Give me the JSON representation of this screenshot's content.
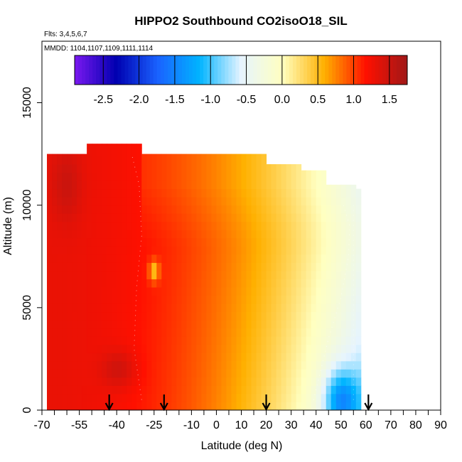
{
  "chart_data": {
    "type": "heatmap",
    "title": "HIPPO2 Southbound CO2isoO18_SIL",
    "subtitle_flights": "Flts: 3,4,5,6,7",
    "subtitle_dates": "MMDD: 1104,1107,1109,1111,1114",
    "xlabel": "Latitude (deg N)",
    "ylabel": "Altitude (m)",
    "xlim": [
      -70,
      90
    ],
    "ylim": [
      0,
      18000
    ],
    "x_ticks": [
      -70,
      -55,
      -40,
      -25,
      -10,
      0,
      10,
      20,
      30,
      40,
      50,
      60,
      70,
      80,
      90
    ],
    "x_minor_ticks": [
      -65,
      -60,
      -50,
      -45,
      -35,
      -30,
      -20,
      -15,
      -5,
      5,
      15,
      25,
      35,
      45,
      55,
      65,
      75,
      85
    ],
    "y_ticks": [
      0,
      5000,
      10000,
      15000
    ],
    "colorbar": {
      "min": -2.9,
      "max": 1.75,
      "ticks": [
        -2.5,
        -2.0,
        -1.5,
        -1.0,
        -0.5,
        0.0,
        0.5,
        1.0,
        1.5
      ],
      "tick_labels": [
        "-2.5",
        "-2.0",
        "-1.5",
        "-1.0",
        "-0.5",
        "0.0",
        "0.5",
        "1.0",
        "1.5"
      ],
      "colors": [
        "#7a18f0",
        "#0000b0",
        "#1a62ff",
        "#00b4ff",
        "#e6f4ff",
        "#ffffc0",
        "#ffb000",
        "#ff1000",
        "#a01818"
      ]
    },
    "arrows_at_latitude": [
      -43,
      -21,
      20,
      61
    ],
    "contours": [
      {
        "name": "zero",
        "points": [
          [
            39,
            500
          ],
          [
            42,
            2000
          ],
          [
            45,
            3500
          ],
          [
            50,
            5500
          ],
          [
            53,
            7500
          ],
          [
            53.5,
            9000
          ],
          [
            51,
            10000
          ]
        ]
      },
      {
        "name": "west",
        "points": [
          [
            -30,
            500
          ],
          [
            -33,
            3000
          ],
          [
            -32,
            6000
          ],
          [
            -30,
            8500
          ],
          [
            -31,
            11000
          ],
          [
            -34,
            12500
          ]
        ]
      },
      {
        "name": "north",
        "points": [
          [
            55,
            500
          ],
          [
            55,
            5000
          ],
          [
            55,
            10000
          ]
        ]
      }
    ],
    "top_altitude_by_latitude": [
      {
        "lat_range": [
          -67,
          -52
        ],
        "top": 12500
      },
      {
        "lat_range": [
          -52,
          -30
        ],
        "top": 13000
      },
      {
        "lat_range": [
          -30,
          20
        ],
        "top": 12500
      },
      {
        "lat_range": [
          20,
          34
        ],
        "top": 12000
      },
      {
        "lat_range": [
          34,
          45
        ],
        "top": 11700
      },
      {
        "lat_range": [
          45,
          56
        ],
        "top": 11000
      },
      {
        "lat_range": [
          56,
          58
        ],
        "top": 10800
      }
    ],
    "value_field_rules": {
      "low_red_max": 1.3,
      "dark_core": {
        "lat": -39,
        "alt": 2000,
        "value": 1.55
      },
      "upper_core": {
        "lat": -60,
        "alt": 11000,
        "value": 1.5
      },
      "yellow_patch": {
        "lat": -25,
        "alt": 6800,
        "value": 0.3
      },
      "blue_minimum": {
        "lat": 50,
        "alt": 500,
        "value": -1.1
      }
    }
  }
}
